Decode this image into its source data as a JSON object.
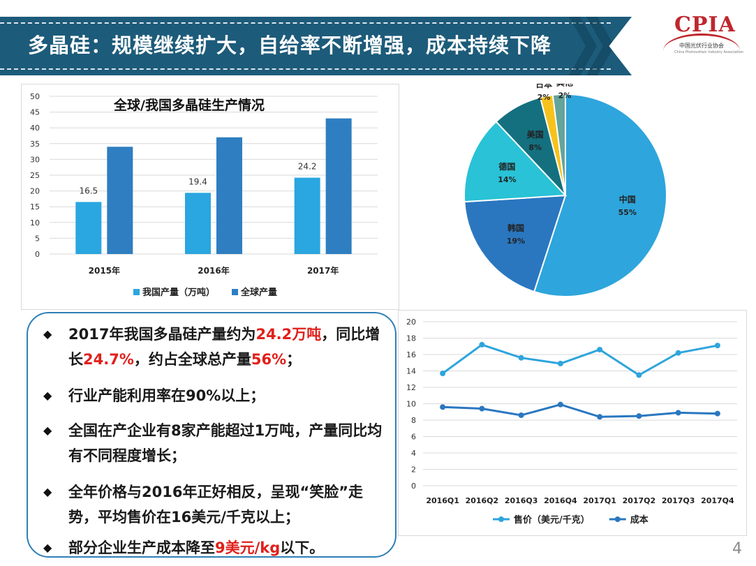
{
  "header": {
    "title": "多晶硅：规模继续扩大，自给率不断增强，成本持续下降",
    "logo_text": "CPIA",
    "logo_subtitle": "中国光伏行业协会",
    "logo_english": "China Photovoltaic Industry Association"
  },
  "bullets": [
    {
      "parts": [
        {
          "text": "2017年我国多晶硅产量约为"
        },
        {
          "text": "24.2万吨",
          "hl": true
        },
        {
          "text": "，同比增长"
        },
        {
          "text": "24.7%",
          "hl": true
        },
        {
          "text": "，约占全球总产量"
        },
        {
          "text": "56%",
          "hl": true
        },
        {
          "text": "；"
        }
      ]
    },
    {
      "parts": [
        {
          "text": "行业产能利用率在90%以上；"
        }
      ]
    },
    {
      "parts": [
        {
          "text": "全国在产企业有8家产能超过1万吨，产量同比均有不同程度增长；"
        }
      ]
    },
    {
      "parts": [
        {
          "text": "全年价格与2016年正好相反，呈现“笑脸”走势，平均售价在16美元/千克以上；"
        }
      ]
    },
    {
      "parts": [
        {
          "text": "部分企业生产成本降至"
        },
        {
          "text": "9美元/kg",
          "hl": true
        },
        {
          "text": "以下。"
        }
      ]
    }
  ],
  "page_number": "4",
  "colors": {
    "banner": "#1d5b7a",
    "highlight": "#e0201b",
    "box_border": "#2f7fb5"
  },
  "chart_data": [
    {
      "type": "bar",
      "title": "全球/我国多晶硅生产情况",
      "categories": [
        "2015年",
        "2016年",
        "2017年"
      ],
      "series": [
        {
          "name": "我国产量（万吨）",
          "values": [
            16.5,
            19.4,
            24.2
          ],
          "color": "#2aa6e0",
          "labels": [
            "16.5",
            "19.4",
            "24.2"
          ]
        },
        {
          "name": "全球产量",
          "values": [
            34,
            37,
            43
          ],
          "color": "#2e7ec1"
        }
      ],
      "ylim": [
        0,
        50
      ],
      "yticks": [
        0,
        5,
        10,
        15,
        20,
        25,
        30,
        35,
        40,
        45,
        50
      ],
      "grid": true,
      "legend": "bottom"
    },
    {
      "type": "pie",
      "slices": [
        {
          "label": "中国",
          "value": 55,
          "pct": "55%",
          "color": "#2ea5dc"
        },
        {
          "label": "韩国",
          "value": 19,
          "pct": "19%",
          "color": "#2a77c0"
        },
        {
          "label": "德国",
          "value": 14,
          "pct": "14%",
          "color": "#29c2d6"
        },
        {
          "label": "美国",
          "value": 8,
          "pct": "8%",
          "color": "#14707f"
        },
        {
          "label": "日本",
          "value": 2,
          "pct": "2%",
          "color": "#f8c21c"
        },
        {
          "label": "其他",
          "value": 2,
          "pct": "2%",
          "color": "#63a49b"
        }
      ]
    },
    {
      "type": "line",
      "categories": [
        "2016Q1",
        "2016Q2",
        "2016Q3",
        "2016Q4",
        "2017Q1",
        "2017Q2",
        "2017Q3",
        "2017Q4"
      ],
      "series": [
        {
          "name": "售价（美元/千克）",
          "values": [
            13.7,
            17.2,
            15.6,
            14.9,
            16.6,
            13.5,
            16.2,
            17.1
          ],
          "color": "#2ea5dc"
        },
        {
          "name": "成本",
          "values": [
            9.6,
            9.4,
            8.6,
            9.9,
            8.4,
            8.5,
            8.9,
            8.8
          ],
          "color": "#2a77c0"
        }
      ],
      "ylim": [
        0,
        20
      ],
      "yticks": [
        0,
        2,
        4,
        6,
        8,
        10,
        12,
        14,
        16,
        18,
        20
      ],
      "grid": true,
      "legend": "bottom"
    }
  ]
}
